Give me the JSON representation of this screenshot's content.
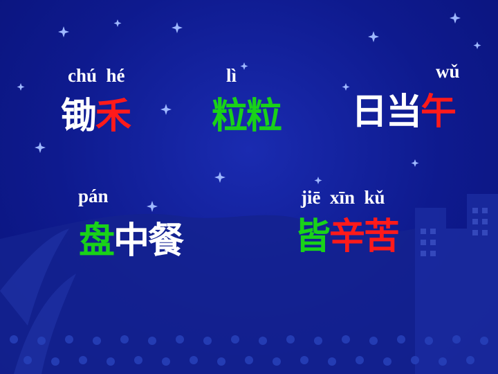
{
  "colors": {
    "red": "#ff1a1a",
    "green": "#19d219",
    "white": "#ffffff"
  },
  "lines": [
    {
      "pinyin": "chú  hé",
      "chars": [
        {
          "text": "锄",
          "color": "white"
        },
        {
          "text": "禾",
          "color": "red"
        }
      ]
    },
    {
      "pinyin": "lì",
      "chars": [
        {
          "text": "粒",
          "color": "green"
        },
        {
          "text": "粒",
          "color": "green"
        }
      ]
    },
    {
      "pinyin": "wǔ",
      "chars": [
        {
          "text": "日",
          "color": "white"
        },
        {
          "text": "当",
          "color": "white"
        },
        {
          "text": "午",
          "color": "red"
        }
      ]
    },
    {
      "pinyin": "pán",
      "chars": [
        {
          "text": "盘",
          "color": "green"
        },
        {
          "text": "中",
          "color": "white"
        },
        {
          "text": "餐",
          "color": "white"
        }
      ]
    },
    {
      "pinyin": "jiē  xīn  kǔ",
      "chars": [
        {
          "text": "皆",
          "color": "green"
        },
        {
          "text": "辛",
          "color": "red"
        },
        {
          "text": "苦",
          "color": "red"
        }
      ]
    }
  ]
}
